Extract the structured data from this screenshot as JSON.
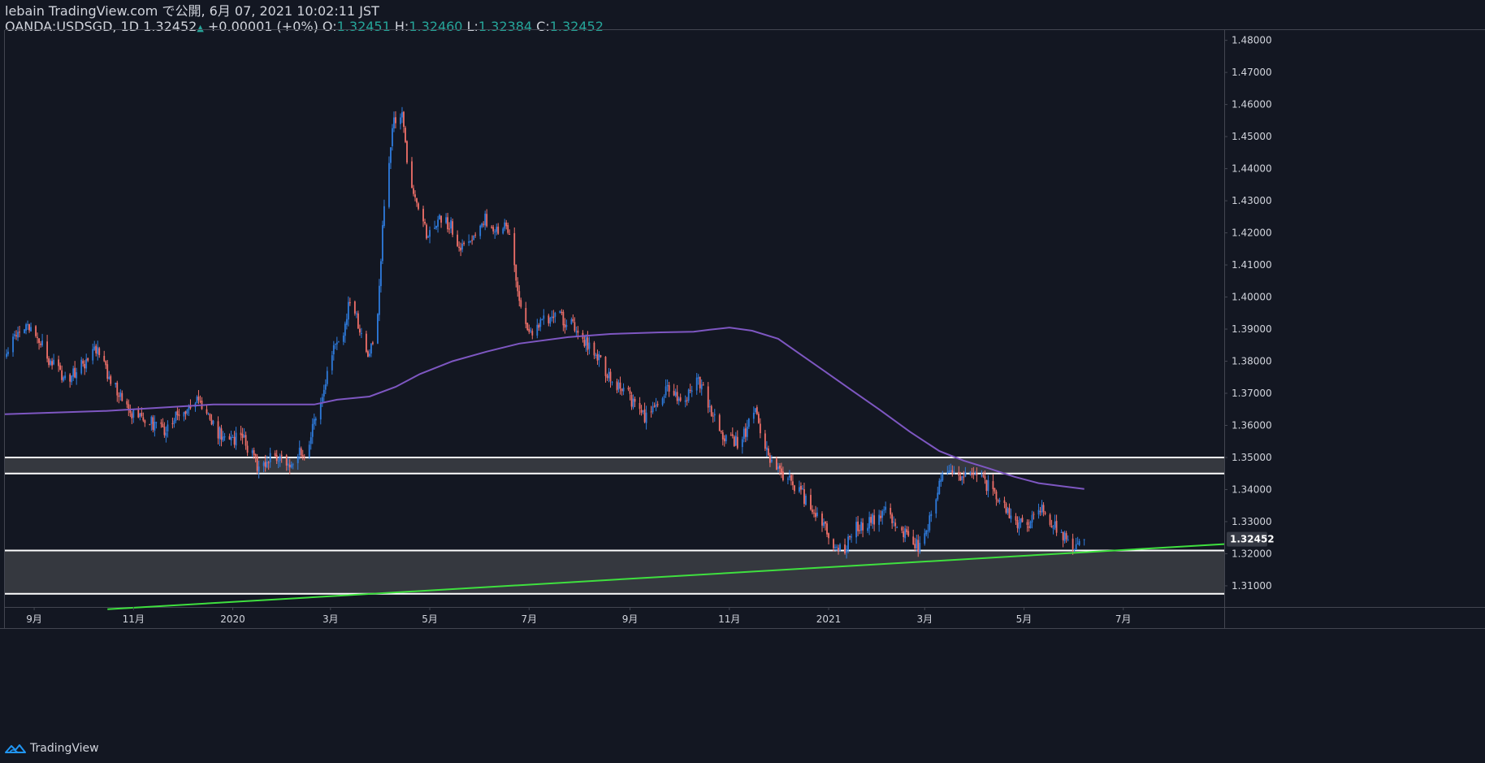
{
  "header": {
    "publisher_line": "lebain TradingView.com で公開, 6月 07, 2021 10:02:11 JST",
    "symbol": "OANDA:USDSGD, 1D",
    "last": "1.32452",
    "change_arrow": "▲",
    "change": "+0.00001 (+0%)",
    "open_label": "O:",
    "open": "1.32451",
    "high_label": "H:",
    "high": "1.32460",
    "low_label": "L:",
    "low": "1.32384",
    "close_label": "C:",
    "close": "1.32452"
  },
  "footer": {
    "brand": "TradingView"
  },
  "colors": {
    "background": "#131722",
    "up": "#2e7bdc",
    "down": "#f07069",
    "ma": "#7e57c2",
    "trendline": "#3fe03f",
    "zone_fill": "#3a3c42",
    "zone_line": "#ffffff",
    "axis_text": "#d1d4dc",
    "price_tag_bg": "#363a45"
  },
  "chart_data": {
    "type": "candlestick",
    "symbol": "OANDA:USDSGD",
    "interval": "1D",
    "x_axis": {
      "range": [
        "2019-08-14",
        "2021-09-01"
      ],
      "ticks": [
        {
          "date": "2019-09-01",
          "label": "9月"
        },
        {
          "date": "2019-11-01",
          "label": "11月"
        },
        {
          "date": "2020-01-01",
          "label": "2020"
        },
        {
          "date": "2020-03-01",
          "label": "3月"
        },
        {
          "date": "2020-05-01",
          "label": "5月"
        },
        {
          "date": "2020-07-01",
          "label": "7月"
        },
        {
          "date": "2020-09-01",
          "label": "9月"
        },
        {
          "date": "2020-11-01",
          "label": "11月"
        },
        {
          "date": "2021-01-01",
          "label": "2021"
        },
        {
          "date": "2021-03-01",
          "label": "3月"
        },
        {
          "date": "2021-05-01",
          "label": "5月"
        },
        {
          "date": "2021-07-01",
          "label": "7月"
        }
      ]
    },
    "y_axis": {
      "range": [
        1.3034,
        1.4832
      ],
      "ticks": [
        "1.48000",
        "1.47000",
        "1.46000",
        "1.45000",
        "1.44000",
        "1.43000",
        "1.42000",
        "1.41000",
        "1.40000",
        "1.39000",
        "1.38000",
        "1.37000",
        "1.36000",
        "1.35000",
        "1.34000",
        "1.33000",
        "1.32000",
        "1.31000"
      ]
    },
    "current_price_label": "1.32452",
    "current_price": 1.32452,
    "price_path": [
      [
        "2019-08-15",
        1.3845
      ],
      [
        "2019-08-30",
        1.3905
      ],
      [
        "2019-09-10",
        1.381
      ],
      [
        "2019-09-20",
        1.374
      ],
      [
        "2019-10-02",
        1.38
      ],
      [
        "2019-10-09",
        1.384
      ],
      [
        "2019-10-20",
        1.372
      ],
      [
        "2019-10-30",
        1.363
      ],
      [
        "2019-11-12",
        1.361
      ],
      [
        "2019-11-20",
        1.359
      ],
      [
        "2019-12-02",
        1.365
      ],
      [
        "2019-12-11",
        1.367
      ],
      [
        "2019-12-23",
        1.358
      ],
      [
        "2020-01-08",
        1.355
      ],
      [
        "2020-01-16",
        1.348
      ],
      [
        "2020-01-24",
        1.35
      ],
      [
        "2020-02-02",
        1.348
      ],
      [
        "2020-02-14",
        1.352
      ],
      [
        "2020-02-24",
        1.366
      ],
      [
        "2020-03-03",
        1.386
      ],
      [
        "2020-03-09",
        1.39
      ],
      [
        "2020-03-13",
        1.4
      ],
      [
        "2020-03-24",
        1.38
      ],
      [
        "2020-03-30",
        1.395
      ],
      [
        "2020-04-03",
        1.43
      ],
      [
        "2020-04-09",
        1.455
      ],
      [
        "2020-04-14",
        1.458
      ],
      [
        "2020-04-17",
        1.442
      ],
      [
        "2020-04-23",
        1.43
      ],
      [
        "2020-04-30",
        1.418
      ],
      [
        "2020-05-07",
        1.426
      ],
      [
        "2020-05-14",
        1.422
      ],
      [
        "2020-05-21",
        1.415
      ],
      [
        "2020-05-28",
        1.42
      ],
      [
        "2020-06-04",
        1.425
      ],
      [
        "2020-06-11",
        1.42
      ],
      [
        "2020-06-18",
        1.422
      ],
      [
        "2020-06-25",
        1.4
      ],
      [
        "2020-07-01",
        1.388
      ],
      [
        "2020-07-09",
        1.392
      ],
      [
        "2020-07-20",
        1.394
      ],
      [
        "2020-07-31",
        1.389
      ],
      [
        "2020-08-10",
        1.382
      ],
      [
        "2020-08-20",
        1.375
      ],
      [
        "2020-08-31",
        1.369
      ],
      [
        "2020-09-08",
        1.362
      ],
      [
        "2020-09-15",
        1.365
      ],
      [
        "2020-09-25",
        1.372
      ],
      [
        "2020-10-03",
        1.365
      ],
      [
        "2020-10-12",
        1.375
      ],
      [
        "2020-10-20",
        1.366
      ],
      [
        "2020-10-29",
        1.356
      ],
      [
        "2020-11-08",
        1.354
      ],
      [
        "2020-11-16",
        1.366
      ],
      [
        "2020-11-25",
        1.35
      ],
      [
        "2020-12-04",
        1.344
      ],
      [
        "2020-12-15",
        1.339
      ],
      [
        "2020-12-24",
        1.333
      ],
      [
        "2021-01-03",
        1.324
      ],
      [
        "2021-01-10",
        1.321
      ],
      [
        "2021-01-18",
        1.328
      ],
      [
        "2021-01-27",
        1.33
      ],
      [
        "2021-02-05",
        1.334
      ],
      [
        "2021-02-17",
        1.326
      ],
      [
        "2021-02-26",
        1.322
      ],
      [
        "2021-03-06",
        1.333
      ],
      [
        "2021-03-13",
        1.347
      ],
      [
        "2021-03-21",
        1.344
      ],
      [
        "2021-03-31",
        1.346
      ],
      [
        "2021-04-09",
        1.341
      ],
      [
        "2021-04-17",
        1.335
      ],
      [
        "2021-04-27",
        1.329
      ],
      [
        "2021-05-05",
        1.33
      ],
      [
        "2021-05-12",
        1.334
      ],
      [
        "2021-05-20",
        1.328
      ],
      [
        "2021-05-27",
        1.324
      ],
      [
        "2021-06-03",
        1.322
      ],
      [
        "2021-06-07",
        1.32452
      ]
    ],
    "moving_average": {
      "points": [
        [
          "2019-08-14",
          1.3635
        ],
        [
          "2019-10-15",
          1.3645
        ],
        [
          "2019-12-20",
          1.3665
        ],
        [
          "2020-01-25",
          1.3665
        ],
        [
          "2020-02-20",
          1.3665
        ],
        [
          "2020-03-05",
          1.368
        ],
        [
          "2020-03-25",
          1.369
        ],
        [
          "2020-04-10",
          1.372
        ],
        [
          "2020-04-25",
          1.376
        ],
        [
          "2020-05-15",
          1.38
        ],
        [
          "2020-06-05",
          1.383
        ],
        [
          "2020-06-25",
          1.3855
        ],
        [
          "2020-07-25",
          1.3875
        ],
        [
          "2020-08-20",
          1.3885
        ],
        [
          "2020-09-20",
          1.389
        ],
        [
          "2020-10-10",
          1.3892
        ],
        [
          "2020-10-20",
          1.3898
        ],
        [
          "2020-11-01",
          1.3905
        ],
        [
          "2020-11-15",
          1.3895
        ],
        [
          "2020-12-01",
          1.387
        ],
        [
          "2020-12-15",
          1.382
        ],
        [
          "2021-01-01",
          1.376
        ],
        [
          "2021-01-15",
          1.371
        ],
        [
          "2021-02-01",
          1.365
        ],
        [
          "2021-02-20",
          1.358
        ],
        [
          "2021-03-10",
          1.352
        ],
        [
          "2021-03-25",
          1.349
        ],
        [
          "2021-04-10",
          1.3465
        ],
        [
          "2021-04-25",
          1.344
        ],
        [
          "2021-05-10",
          1.342
        ],
        [
          "2021-05-25",
          1.341
        ],
        [
          "2021-06-07",
          1.3402
        ]
      ]
    },
    "zones": [
      {
        "name": "resistance-zone",
        "top": 1.35,
        "bottom": 1.345
      },
      {
        "name": "support-zone",
        "top": 1.321,
        "bottom": 1.3075
      }
    ],
    "trendline": {
      "start": [
        "2019-10-16",
        1.3027
      ],
      "end": [
        "2021-09-01",
        1.323
      ]
    }
  }
}
